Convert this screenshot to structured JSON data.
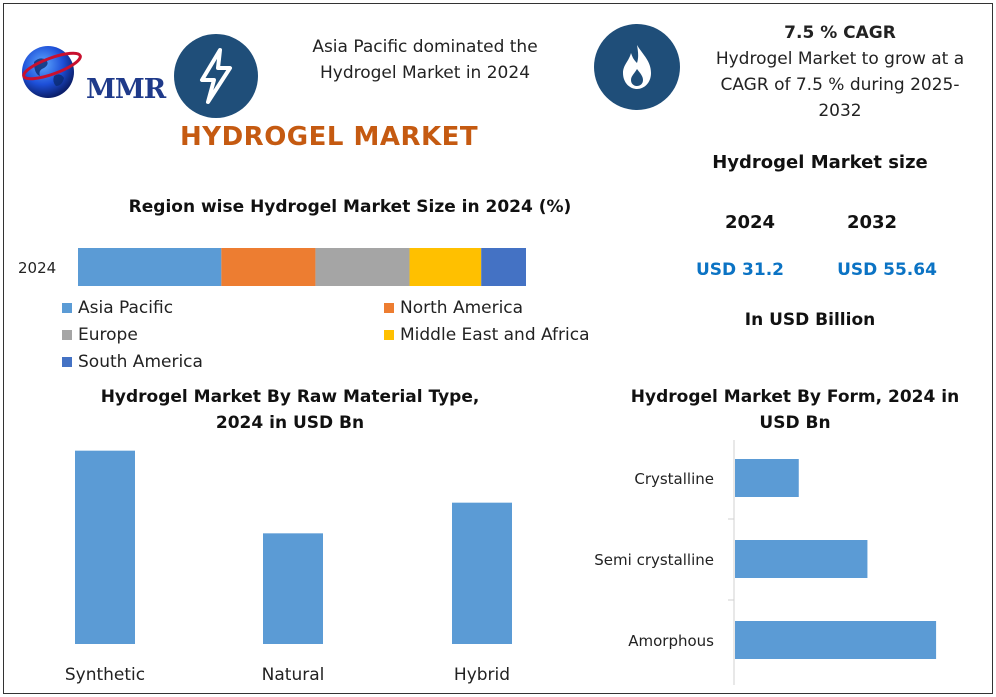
{
  "header": {
    "logo_text": "MMR",
    "headline": "Asia Pacific dominated the Hydrogel Market in 2024",
    "headline_line1": "Asia Pacific dominated the",
    "headline_line2": "Hydrogel Market in 2024",
    "cagr_title": "7.5 % CAGR",
    "cagr_line1": "Hydrogel Market to grow at a",
    "cagr_line2": "CAGR of 7.5 % during 2025-",
    "cagr_line3": "2032",
    "icons": {
      "lightning": "lightning-icon",
      "flame": "flame-icon",
      "globe": "globe-icon"
    },
    "colors": {
      "icon_bg": "#1f4e79",
      "title": "#c55a11"
    }
  },
  "main_title": "HYDROGEL MARKET",
  "market_size": {
    "title": "Hydrogel Market size",
    "year1": "2024",
    "year2": "2032",
    "value1": "USD 31.2",
    "value2": "USD 55.64",
    "unit": "In USD Billion"
  },
  "chart_data": [
    {
      "type": "bar",
      "orientation": "horizontal-stacked",
      "title": "Region wise Hydrogel Market Size in 2024 (%)",
      "categories": [
        "2024"
      ],
      "series": [
        {
          "name": "Asia Pacific",
          "values": [
            32
          ],
          "color": "#5b9bd5"
        },
        {
          "name": "North America",
          "values": [
            21
          ],
          "color": "#ed7d31"
        },
        {
          "name": "Europe",
          "values": [
            21
          ],
          "color": "#a5a5a5"
        },
        {
          "name": "Middle East and Africa",
          "values": [
            16
          ],
          "color": "#ffc000"
        },
        {
          "name": "South America",
          "values": [
            10
          ],
          "color": "#4472c4"
        }
      ],
      "legend_placement": "bottom",
      "grid": false
    },
    {
      "type": "bar",
      "orientation": "vertical",
      "title_line1": "Hydrogel Market By Raw Material Type,",
      "title_line2": "2024 in USD Bn",
      "categories": [
        "Synthetic",
        "Natural",
        "Hybrid"
      ],
      "values": [
        14.5,
        8.3,
        10.6
      ],
      "ylim": [
        0,
        15
      ],
      "color": "#5b9bd5",
      "grid": false
    },
    {
      "type": "bar",
      "orientation": "horizontal",
      "title_line1": "Hydrogel Market By Form, 2024 in",
      "title_line2": "USD Bn",
      "categories": [
        "Crystalline",
        "Semi crystalline",
        "Amorphous"
      ],
      "values": [
        6.5,
        13.5,
        20.5
      ],
      "xlim": [
        0,
        21
      ],
      "color": "#5b9bd5",
      "grid": false
    }
  ]
}
